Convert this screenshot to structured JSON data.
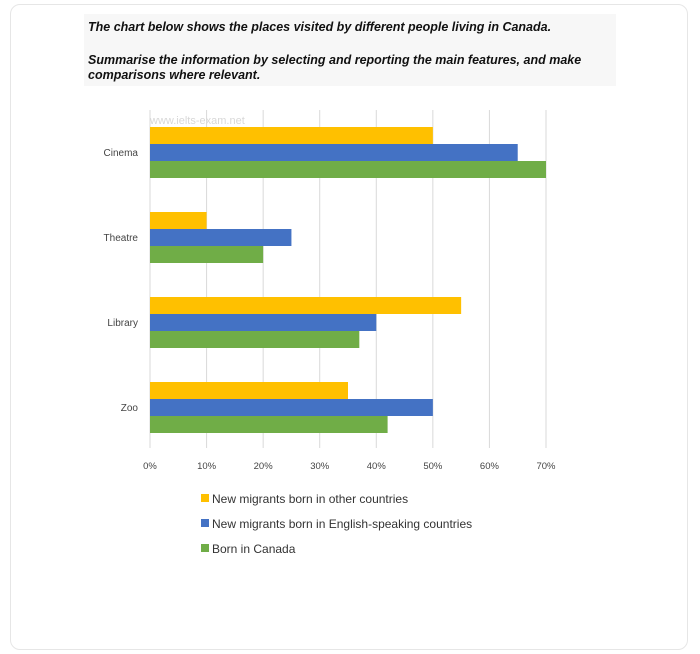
{
  "prompt": {
    "line1": "The chart below shows the places visited by different people living in Canada.",
    "line2": "Summarise the information by selecting and reporting the main features, and make comparisons where relevant."
  },
  "watermark": "www.ielts-exam.net",
  "colors": {
    "other_countries": "#ffc000",
    "english_speaking": "#4472c4",
    "canada": "#70ad47",
    "grid": "#d9d9d9"
  },
  "chart_data": {
    "type": "bar",
    "orientation": "horizontal",
    "categories": [
      "Cinema",
      "Theatre",
      "Library",
      "Zoo"
    ],
    "series": [
      {
        "name": "New migrants born in other countries",
        "values": [
          50,
          10,
          55,
          35
        ]
      },
      {
        "name": "New migrants born in English-speaking countries",
        "values": [
          65,
          25,
          40,
          50
        ]
      },
      {
        "name": "Born in Canada",
        "values": [
          70,
          20,
          37,
          42
        ]
      }
    ],
    "xticks": [
      "0%",
      "10%",
      "20%",
      "30%",
      "40%",
      "50%",
      "60%",
      "70%"
    ],
    "xlim": [
      0,
      70
    ],
    "grid": true,
    "legend": "bottom"
  }
}
